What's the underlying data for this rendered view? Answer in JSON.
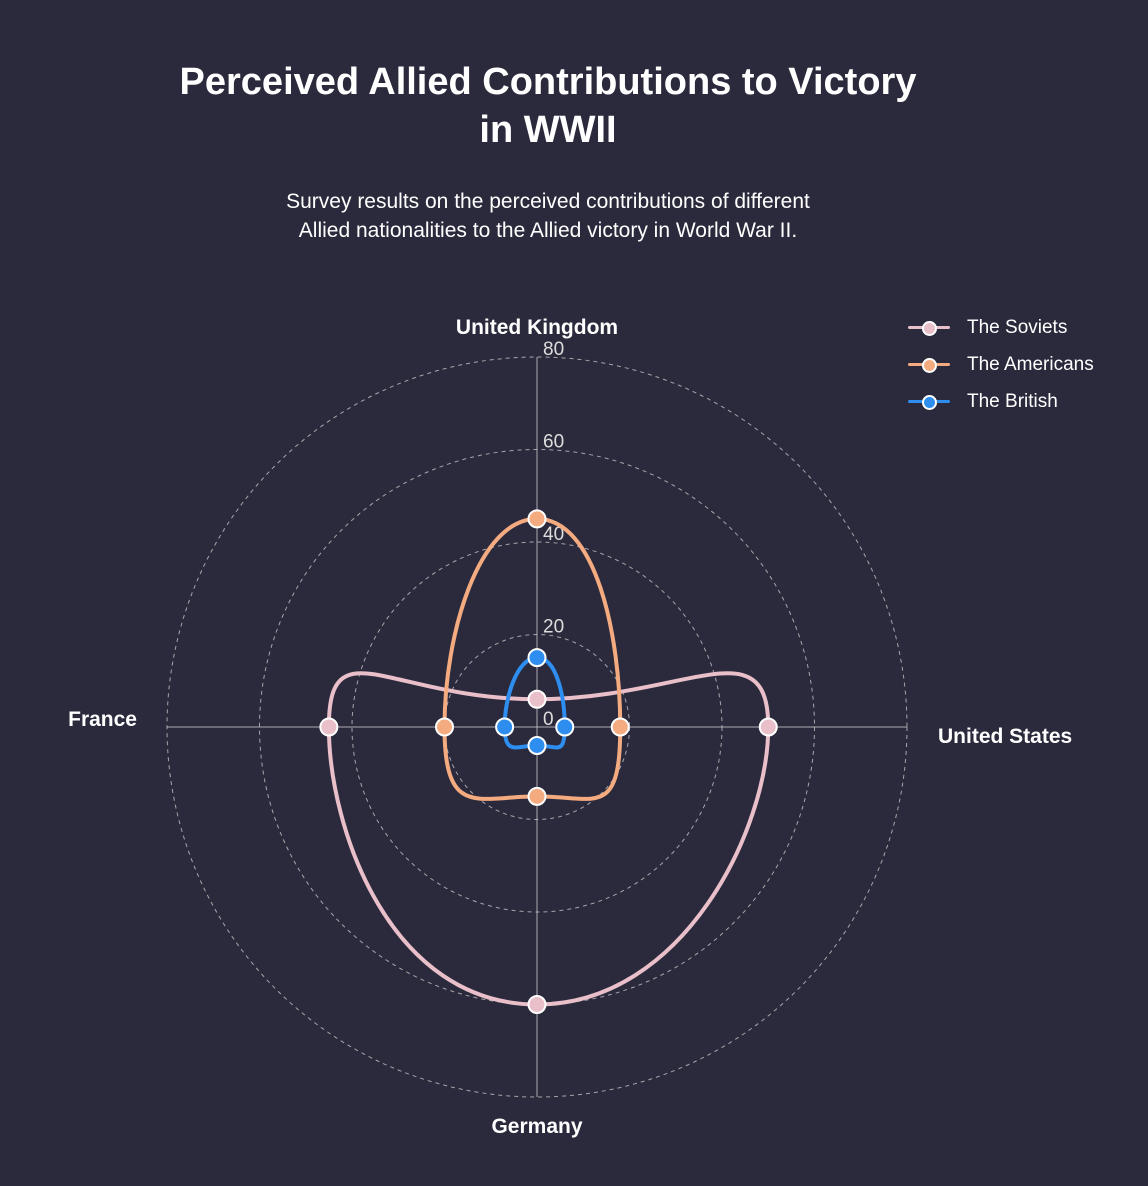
{
  "title": "Perceived Allied Contributions to Victory in WWII",
  "subtitle_lines": [
    "Survey results on the perceived contributions of different",
    "Allied nationalities to the Allied victory in World War II."
  ],
  "legend": {
    "placement": "top-right"
  },
  "colors": {
    "background": "#2b2a3c",
    "grid": "#bbbbbb",
    "axis": "#cccccc",
    "soviets": "#e9bfca",
    "americans": "#f5ab80",
    "british": "#2e8ef0"
  },
  "chart_data": {
    "type": "radar",
    "title": "Perceived Allied Contributions to Victory in WWII",
    "subtitle": "Survey results on the perceived contributions of different Allied nationalities to the Allied victory in World War II.",
    "axes": [
      "United Kingdom",
      "United States",
      "Germany",
      "France"
    ],
    "ticks": [
      0,
      20,
      40,
      60,
      80
    ],
    "rlim": [
      0,
      80
    ],
    "grid": true,
    "grid_style": "dashed",
    "line_shape": "spline",
    "series": [
      {
        "name": "The Soviets",
        "color": "#e9bfca",
        "values": [
          6,
          50,
          60,
          45
        ]
      },
      {
        "name": "The Americans",
        "color": "#f5ab80",
        "values": [
          45,
          18,
          15,
          20
        ]
      },
      {
        "name": "The British",
        "color": "#2e8ef0",
        "values": [
          15,
          6,
          4,
          7
        ]
      }
    ]
  }
}
